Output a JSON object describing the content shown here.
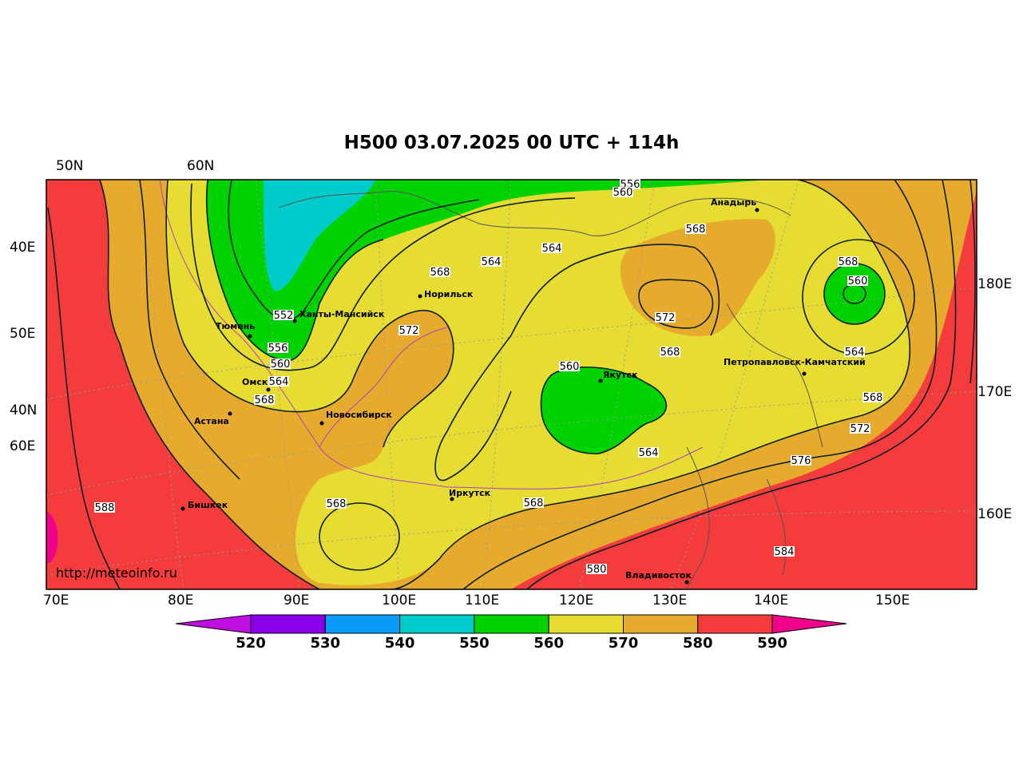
{
  "title": "H500  03.07.2025 00 UTC + 114h",
  "credit": "http://meteoinfo.ru",
  "top_labels": [
    "50N",
    "60N"
  ],
  "left_labels": [
    "40E",
    "50E",
    "40N",
    "60E"
  ],
  "right_labels": [
    "180E",
    "170E",
    "160E"
  ],
  "bottom_labels": [
    "70E",
    "80E",
    "90E",
    "100E",
    "110E",
    "120E",
    "130E",
    "140E",
    "150E"
  ],
  "colors": {
    "c520": "#c010e0",
    "c530": "#8b00e8",
    "c540": "#0a9cf5",
    "c550": "#00cccc",
    "c560": "#00d200",
    "c570": "#e6dc32",
    "c580": "#e6aa2d",
    "c590": "#f53c3c",
    "c600": "#f0008c"
  },
  "legend": {
    "labels": [
      "520",
      "530",
      "540",
      "550",
      "560",
      "570",
      "580",
      "590"
    ],
    "colors": [
      "#8b00e8",
      "#0a9cf5",
      "#00cccc",
      "#00d200",
      "#e6dc32",
      "#e6aa2d",
      "#f53c3c"
    ],
    "under_color": "#c010e0",
    "over_color": "#f0008c"
  },
  "contour_labels": [
    "556",
    "560",
    "568",
    "564",
    "564",
    "568",
    "572",
    "568",
    "552",
    "556",
    "560",
    "564",
    "568",
    "572",
    "560",
    "564",
    "568",
    "588",
    "568",
    "568",
    "580",
    "584",
    "576",
    "572",
    "568",
    "564",
    "560",
    "556",
    "560",
    "564"
  ],
  "cities": [
    "Анадырь",
    "Норильск",
    "Ханты-Мансийск",
    "Тюмень",
    "Омск",
    "Астана",
    "Новосибирск",
    "Якутск",
    "Петропавловск-Камчатский",
    "Иркутск",
    "Бишкек",
    "Владивосток"
  ]
}
